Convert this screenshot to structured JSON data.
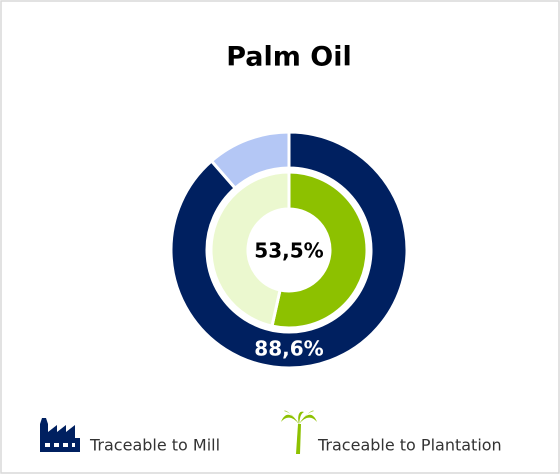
{
  "chart_data": {
    "type": "donut",
    "title": "Palm Oil",
    "series": [
      {
        "name": "Traceable to Mill",
        "values": [
          88.6,
          11.4
        ],
        "colors": [
          "#002060",
          "#b4c7f5"
        ],
        "value_labels": [
          "88,6%",
          null
        ]
      },
      {
        "name": "Traceable to Plantation",
        "values": [
          53.5,
          46.5
        ],
        "colors": [
          "#8dc100",
          "#ebf8cf"
        ],
        "value_labels": [
          "53,5%",
          null
        ]
      }
    ]
  }
}
